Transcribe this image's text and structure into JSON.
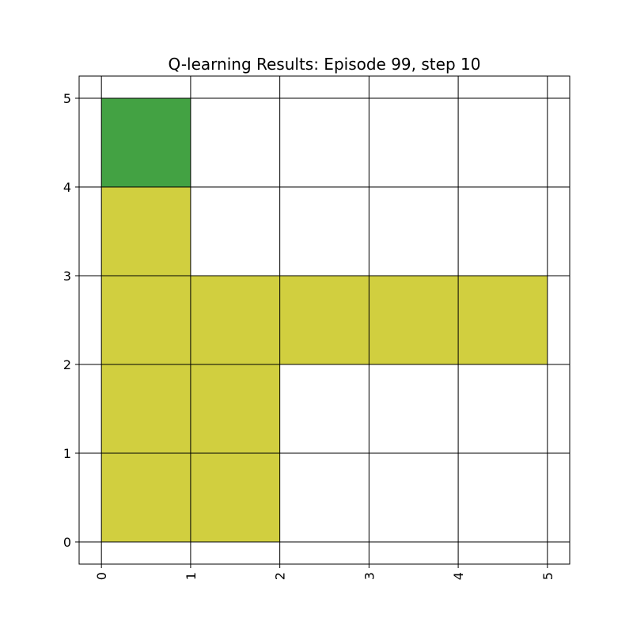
{
  "chart_data": {
    "type": "heatmap",
    "title": "Q-learning Results: Episode 99, step 10",
    "xlabel": "",
    "ylabel": "",
    "xlim": [
      -0.25,
      5.25
    ],
    "ylim": [
      -0.25,
      5.25
    ],
    "x_ticks": [
      "0",
      "1",
      "2",
      "3",
      "4",
      "5"
    ],
    "y_ticks": [
      "0",
      "1",
      "2",
      "3",
      "4",
      "5"
    ],
    "x_tick_rotation": "vertical",
    "grid": true,
    "legend": "none",
    "colors": {
      "path": "#d1cf3f",
      "agent": "#43a243",
      "grid": "#000000",
      "background": "#ffffff"
    },
    "cells": [
      {
        "x": 0,
        "y": 0,
        "state": "path"
      },
      {
        "x": 1,
        "y": 0,
        "state": "path"
      },
      {
        "x": 0,
        "y": 1,
        "state": "path"
      },
      {
        "x": 1,
        "y": 1,
        "state": "path"
      },
      {
        "x": 0,
        "y": 2,
        "state": "path"
      },
      {
        "x": 1,
        "y": 2,
        "state": "path"
      },
      {
        "x": 2,
        "y": 2,
        "state": "path"
      },
      {
        "x": 3,
        "y": 2,
        "state": "path"
      },
      {
        "x": 4,
        "y": 2,
        "state": "path"
      },
      {
        "x": 0,
        "y": 3,
        "state": "path"
      },
      {
        "x": 0,
        "y": 4,
        "state": "agent"
      }
    ]
  }
}
